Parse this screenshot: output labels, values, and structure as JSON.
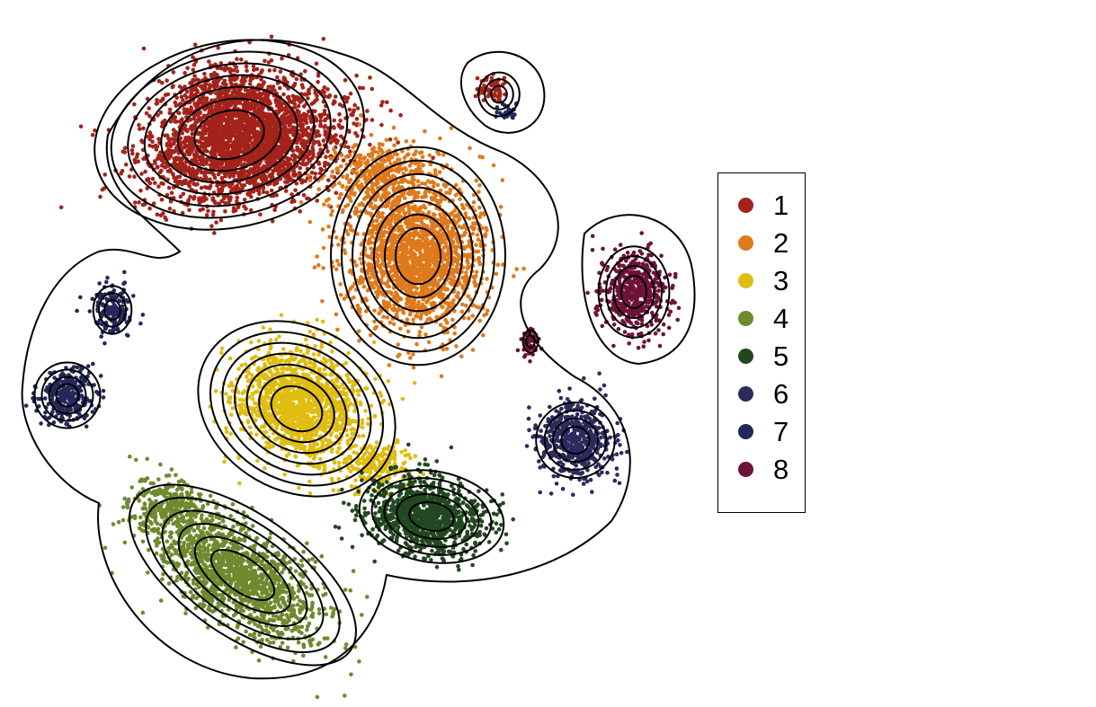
{
  "chart_data": {
    "type": "scatter",
    "title": "",
    "xlabel": "",
    "ylabel": "",
    "grid": false,
    "legend_position": "right",
    "contours": true,
    "series": [
      {
        "name": "1",
        "color": "#a3231b"
      },
      {
        "name": "2",
        "color": "#df7a1c"
      },
      {
        "name": "3",
        "color": "#e0bd12"
      },
      {
        "name": "4",
        "color": "#6f8a2e"
      },
      {
        "name": "5",
        "color": "#22481f"
      },
      {
        "name": "6",
        "color": "#2c2a5e"
      },
      {
        "name": "7",
        "color": "#24285a"
      },
      {
        "name": "8",
        "color": "#6f1238"
      }
    ]
  },
  "legend": {
    "items": [
      {
        "label": "1",
        "color": "#a3231b"
      },
      {
        "label": "2",
        "color": "#df7a1c"
      },
      {
        "label": "3",
        "color": "#e0bd12"
      },
      {
        "label": "4",
        "color": "#6f8a2e"
      },
      {
        "label": "5",
        "color": "#22481f"
      },
      {
        "label": "6",
        "color": "#2c2a5e"
      },
      {
        "label": "7",
        "color": "#24285a"
      },
      {
        "label": "8",
        "color": "#6f1238"
      }
    ]
  }
}
